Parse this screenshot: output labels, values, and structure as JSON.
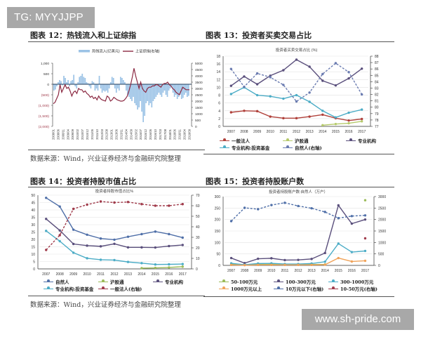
{
  "watermarks": {
    "top": "TG: MYYJJPP",
    "bottom": "www.sh-pride.com"
  },
  "panels": {
    "p12": {
      "title": "图表 12：热钱流入和上证综指",
      "source": "数据来源：Wind，兴业证券经济与金融研究院整理"
    },
    "p13": {
      "title": "图表 13：投资者买卖交易占比"
    },
    "p14": {
      "title": "图表 14：投资者持股市值占比",
      "source": "数据来源：Wind，兴业证券经济与金融研究院整理"
    },
    "p15": {
      "title": "图表 15：投资者持股账户数"
    }
  },
  "chart_data": [
    {
      "id": "chart12",
      "type": "bar+line",
      "title": "热钱流入和上证综指",
      "legend": [
        "热钱流入(亿美元)",
        "上证综指(右轴)"
      ],
      "legend_position": "top",
      "y_left": {
        "range": [
          -2000,
          1000
        ],
        "ticks": [
          "1,000",
          "500",
          "0",
          "(500)",
          "(1,000)",
          "(1,500)",
          "(2,000)"
        ]
      },
      "y_right": {
        "range": [
          0,
          5000
        ],
        "ticks": [
          "5000",
          "4500",
          "4000",
          "3500",
          "3000",
          "2500",
          "2000",
          "1500",
          "1000",
          "500",
          "0"
        ]
      },
      "x_ticks": [
        "2008/01",
        "2008/06",
        "2008/11",
        "2009/04",
        "2009/09",
        "2010/02",
        "2010/07",
        "2010/12",
        "2011/05",
        "2011/10",
        "2012/03",
        "2012/08",
        "2013/01",
        "2013/06",
        "2013/11",
        "2014/04",
        "2014/09",
        "2015/02",
        "2015/07",
        "2015/12",
        "2016/05",
        "2016/10",
        "2017/03",
        "2017/08",
        "2018/01",
        "2018/06",
        "2018/11",
        "2019/04",
        "2019/09"
      ],
      "series": [
        {
          "name": "热钱流入(亿美元)",
          "axis": "left",
          "color": "#9cc3e6",
          "values": [
            -300,
            -250,
            -100,
            100,
            200,
            150,
            -50,
            400,
            300,
            100,
            200,
            -100,
            150,
            200,
            450,
            -100,
            -200,
            100,
            350,
            400,
            500,
            350,
            300,
            100,
            50,
            -100,
            -200,
            150,
            100,
            -300,
            -200,
            -300,
            400,
            -200,
            -400,
            -300,
            -350,
            -300,
            -400,
            -200,
            100,
            350,
            300,
            -200,
            -400,
            -200,
            -300,
            350,
            300,
            200,
            100,
            -300,
            -500,
            -600,
            -700,
            -800,
            -600,
            -900,
            -1000,
            -1200,
            -1100,
            -800,
            -1300,
            -1800,
            -1500,
            -900,
            -800,
            -1000,
            -900,
            -1100,
            -800,
            -700,
            -600,
            -500,
            -400,
            -500,
            -600,
            -400,
            -300,
            -500,
            -600,
            -300,
            -200,
            -100,
            -400,
            -600,
            -500,
            -700,
            -600,
            -500,
            -700,
            -650,
            -500,
            -400,
            -600,
            -550
          ]
        },
        {
          "name": "上证综指(右轴)",
          "axis": "right",
          "color": "#8b2942",
          "values": [
            1800,
            1900,
            2200,
            2500,
            3300,
            2700,
            3000,
            3300,
            3000,
            3100,
            2800,
            2400,
            2700,
            2800,
            2600,
            3000,
            2900,
            2900,
            2700,
            2800,
            2600,
            2500,
            2300,
            2400,
            2200,
            2300,
            2100,
            2400,
            2200,
            2100,
            2050,
            2000,
            2400,
            2300,
            2000,
            2100,
            2300,
            2200,
            2100,
            2050,
            2000,
            2000,
            2050,
            2200,
            2400,
            2800,
            3300,
            3900,
            4600,
            4000,
            3500,
            3000,
            3500,
            3000,
            2800,
            2700,
            3000,
            3100,
            3100,
            3200,
            3200,
            3300,
            3300,
            3200,
            3100,
            3300,
            3400,
            3400,
            3500,
            3300,
            3200,
            3000,
            2900,
            2700,
            2600,
            2500,
            2800,
            3100,
            3000,
            2900,
            2900,
            2900
          ]
        }
      ]
    },
    {
      "id": "chart13",
      "type": "line",
      "title": "投资者买卖交易占比 (%)",
      "categories": [
        "2007",
        "2008",
        "2009",
        "2010",
        "2011",
        "2012",
        "2013",
        "2014",
        "2015",
        "2016",
        "2017"
      ],
      "y_left": {
        "range": [
          0,
          18
        ],
        "ticks": [
          0,
          2,
          4,
          6,
          8,
          10,
          12,
          14,
          16,
          18
        ]
      },
      "y_right": {
        "range": [
          77,
          88
        ],
        "ticks": [
          77,
          78,
          79,
          80,
          81,
          82,
          83,
          84,
          85,
          86,
          87,
          88
        ]
      },
      "grid": true,
      "legend_position": "bottom",
      "series": [
        {
          "name": "一般法人",
          "axis": "left",
          "color": "#b0403a",
          "style": "solid",
          "values": [
            3.6,
            4.0,
            3.9,
            2.5,
            2.1,
            2.1,
            2.5,
            3.0,
            2.1,
            1.5,
            1.9
          ]
        },
        {
          "name": "沪股通",
          "axis": "left",
          "color": "#b5c96a",
          "style": "solid",
          "values": [
            null,
            null,
            null,
            null,
            null,
            null,
            null,
            0.3,
            0.6,
            0.8,
            1.3
          ]
        },
        {
          "name": "专业机构",
          "axis": "left",
          "color": "#5a4f7c",
          "style": "solid",
          "values": [
            10.4,
            12.8,
            10.8,
            13.0,
            14.4,
            17.1,
            15.3,
            11.7,
            10.5,
            12.3,
            14.8
          ]
        },
        {
          "name": "专业机构:投资基金",
          "axis": "left",
          "color": "#4bacc6",
          "style": "solid",
          "values": [
            8.3,
            10.0,
            8.0,
            7.7,
            7.1,
            8.0,
            6.3,
            4.0,
            2.3,
            3.5,
            4.3
          ]
        },
        {
          "name": "自然人(右轴)",
          "axis": "right",
          "color": "#6a7bb0",
          "style": "dashed",
          "values": [
            86.0,
            83.2,
            85.3,
            84.7,
            83.5,
            80.9,
            82.3,
            85.2,
            86.9,
            85.5,
            82.0
          ]
        }
      ]
    },
    {
      "id": "chart14",
      "type": "line",
      "title": "投资者持股市值占比%",
      "categories": [
        "2007",
        "2008",
        "2009",
        "2010",
        "2011",
        "2012",
        "2013",
        "2014",
        "2015",
        "2016",
        "2017"
      ],
      "y_left": {
        "range": [
          0,
          50
        ],
        "ticks": [
          0,
          5,
          10,
          15,
          20,
          25,
          30,
          35,
          40,
          45,
          50
        ]
      },
      "y_right": {
        "range": [
          0,
          70
        ],
        "ticks": [
          0,
          10,
          20,
          30,
          40,
          50,
          60,
          70
        ]
      },
      "grid": true,
      "legend_position": "bottom",
      "series": [
        {
          "name": "自然人",
          "axis": "left",
          "color": "#4f6fa8",
          "style": "solid",
          "values": [
            48.2,
            42.3,
            26.6,
            23.2,
            20.6,
            19.8,
            21.8,
            23.6,
            25.3,
            23.6,
            21.2
          ]
        },
        {
          "name": "沪股通",
          "axis": "left",
          "color": "#9bbb59",
          "style": "solid",
          "values": [
            null,
            null,
            null,
            null,
            null,
            null,
            null,
            0.5,
            0.7,
            1.0,
            1.5
          ]
        },
        {
          "name": "专业机构",
          "axis": "left",
          "color": "#5a4f7c",
          "style": "solid",
          "values": [
            33.9,
            26.1,
            16.9,
            15.8,
            15.3,
            17.0,
            14.6,
            14.6,
            14.5,
            15.5,
            16.2
          ]
        },
        {
          "name": "专业机构:投资基金",
          "axis": "left",
          "color": "#4bacc6",
          "style": "solid",
          "values": [
            25.8,
            18.8,
            11.0,
            7.2,
            6.2,
            6.0,
            4.7,
            3.9,
            3.0,
            3.1,
            3.3
          ]
        },
        {
          "name": "一般法人(右轴)",
          "axis": "right",
          "color": "#a03a4a",
          "style": "dashed",
          "values": [
            18,
            32,
            57,
            61,
            64,
            63,
            63.5,
            61.5,
            60,
            60,
            61.5
          ]
        }
      ]
    },
    {
      "id": "chart15",
      "type": "line",
      "title": "投资者持股账户数:自然人（万户）",
      "categories": [
        "2007",
        "2008",
        "2009",
        "2010",
        "2011",
        "2012",
        "2013",
        "2014",
        "2015",
        "2016",
        "2017"
      ],
      "y_left": {
        "range": [
          0,
          300
        ],
        "ticks": [
          0,
          50,
          100,
          150,
          200,
          250,
          300
        ]
      },
      "y_right": {
        "range": [
          0,
          3000
        ],
        "ticks": [
          0,
          500,
          1000,
          1500,
          2000,
          2500,
          3000
        ]
      },
      "grid": true,
      "legend_position": "bottom",
      "series": [
        {
          "name": "50-100万元",
          "axis": "left",
          "color": "#9bbb59",
          "style": "solid",
          "values": [
            5,
            3,
            4,
            5,
            4,
            4,
            4,
            4,
            null,
            null,
            284
          ]
        },
        {
          "name": "100-300万元",
          "axis": "left",
          "color": "#5a4f7c",
          "style": "solid",
          "values": [
            32,
            10,
            29,
            31,
            23,
            24,
            28,
            54,
            262,
            182,
            200
          ]
        },
        {
          "name": "300-1000万元",
          "axis": "left",
          "color": "#4bacc6",
          "style": "solid",
          "values": [
            9,
            3,
            8,
            9,
            6,
            6,
            8,
            16,
            95,
            58,
            63
          ]
        },
        {
          "name": "1000万元以上",
          "axis": "left",
          "color": "#f0a35a",
          "style": "solid",
          "values": [
            2,
            1,
            2,
            2,
            2,
            2,
            2,
            3,
            32,
            17,
            20
          ]
        },
        {
          "name": "10万元以下(右轴)",
          "axis": "right",
          "color": "#4f6fa8",
          "style": "dashed",
          "values": [
            1930,
            2510,
            2450,
            2630,
            2730,
            2590,
            2490,
            2330,
            2060,
            2150,
            2180
          ]
        },
        {
          "name": "10-50万元(右轴)",
          "axis": "right",
          "color": "#a03a4a",
          "style": "dashed",
          "values": [
            null,
            null,
            null,
            null,
            null,
            null,
            null,
            null,
            null,
            null,
            1180
          ]
        }
      ]
    }
  ],
  "legends": {
    "c12": [
      "热钱流入(亿美元)",
      "上证综指(右轴)"
    ],
    "c13": [
      "一般法人",
      "沪股通",
      "专业机构",
      "专业机构:投资基金",
      "自然人(右轴)"
    ],
    "c14": [
      "自然人",
      "沪股通",
      "专业机构",
      "专业机构:投资基金",
      "一般法人(右轴)"
    ],
    "c15": [
      "50-100万元",
      "100-300万元",
      "300-1000万元",
      "1000万元以上",
      "10万元以下(右轴)",
      "10-50万元(右轴)"
    ]
  },
  "chart_titles": {
    "c13": "投资者买卖交易占比 (%)",
    "c14": "投资者持股市值占比%",
    "c15": "投资者持股账户数:自然人（万户）"
  }
}
